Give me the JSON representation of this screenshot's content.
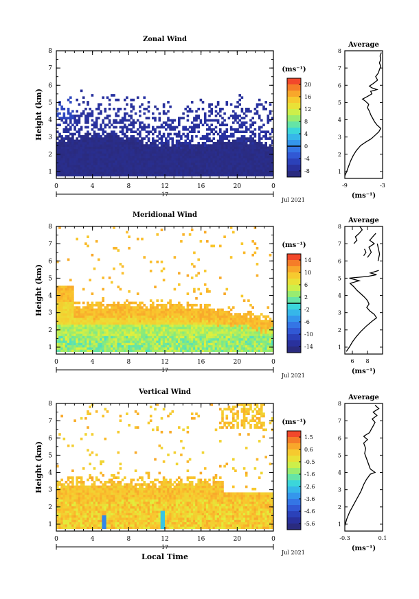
{
  "chart_data": [
    {
      "type": "heatmap",
      "title": "Zonal Wind",
      "xlabel": "",
      "ylabel": "Height (km)",
      "xlim": [
        0,
        24
      ],
      "ylim": [
        0.6,
        8
      ],
      "xticks": [
        "0",
        "4",
        "8",
        "12",
        "16",
        "20",
        "0"
      ],
      "yticks": [
        "1",
        "2",
        "3",
        "4",
        "5",
        "6",
        "7",
        "8"
      ],
      "date_day": "17",
      "date_label": "Jul 2021",
      "colorbar": {
        "unit": "(ms⁻¹)",
        "ticks": [
          "20",
          "16",
          "12",
          "8",
          "4",
          "0",
          "-4",
          "-8"
        ],
        "range": [
          -10,
          22
        ],
        "zero_line": 0
      },
      "avg_profile": {
        "title": "Average",
        "xlim": [
          -9,
          -3
        ],
        "xticks": [
          "-9",
          "-3"
        ],
        "xlabel": "(ms⁻¹)",
        "yticks": [
          "1",
          "2",
          "3",
          "4",
          "5",
          "6",
          "7",
          "8"
        ],
        "segments": [
          [
            [
              -9.0,
              0.75
            ],
            [
              -8.7,
              1.0
            ],
            [
              -8.4,
              1.3
            ],
            [
              -8.1,
              1.6
            ],
            [
              -7.7,
              1.9
            ],
            [
              -7.2,
              2.2
            ],
            [
              -6.5,
              2.5
            ],
            [
              -5.7,
              2.7
            ],
            [
              -4.8,
              2.9
            ],
            [
              -4.2,
              3.1
            ],
            [
              -3.6,
              3.3
            ],
            [
              -3.3,
              3.5
            ],
            [
              -3.9,
              3.7
            ],
            [
              -4.3,
              3.9
            ],
            [
              -4.6,
              4.1
            ],
            [
              -4.9,
              4.3
            ],
            [
              -5.1,
              4.5
            ],
            [
              -5.4,
              4.7
            ],
            [
              -5.2,
              4.9
            ],
            [
              -5.8,
              5.1
            ],
            [
              -6.2,
              5.2
            ],
            [
              -5.4,
              5.35
            ],
            [
              -4.7,
              5.5
            ],
            [
              -4.9,
              5.65
            ],
            [
              -3.9,
              5.75
            ],
            [
              -4.7,
              5.85
            ],
            [
              -5.1,
              5.95
            ],
            [
              -4.5,
              6.1
            ],
            [
              -3.8,
              6.3
            ],
            [
              -4.1,
              6.5
            ],
            [
              -3.7,
              6.7
            ],
            [
              -3.5,
              6.9
            ],
            [
              -3.3,
              7.1
            ],
            [
              -3.5,
              7.3
            ],
            [
              -3.3,
              7.5
            ],
            [
              -3.4,
              7.7
            ],
            [
              -3.2,
              7.9
            ]
          ]
        ]
      }
    },
    {
      "type": "heatmap",
      "title": "Meridional Wind",
      "xlabel": "",
      "ylabel": "Height (km)",
      "xlim": [
        0,
        24
      ],
      "ylim": [
        0.6,
        8
      ],
      "xticks": [
        "0",
        "4",
        "8",
        "12",
        "16",
        "20",
        "0"
      ],
      "yticks": [
        "1",
        "2",
        "3",
        "4",
        "5",
        "6",
        "7",
        "8"
      ],
      "date_day": "17",
      "date_label": "Jul 2021",
      "colorbar": {
        "unit": "(ms⁻¹)",
        "ticks": [
          "14",
          "10",
          "6",
          "2",
          "-2",
          "-6",
          "-10",
          "-14"
        ],
        "range": [
          -16,
          16
        ],
        "zero_line": 0
      },
      "avg_profile": {
        "title": "Average",
        "xlim": [
          5,
          10
        ],
        "xticks": [
          "6",
          "8"
        ],
        "xlabel": "(ms⁻¹)",
        "yticks": [
          "1",
          "2",
          "3",
          "4",
          "5",
          "6",
          "7",
          "8"
        ],
        "segments": [
          [
            [
              5.2,
              0.75
            ],
            [
              5.6,
              1.0
            ],
            [
              6.0,
              1.3
            ],
            [
              6.5,
              1.6
            ],
            [
              7.1,
              1.9
            ],
            [
              7.8,
              2.2
            ],
            [
              8.6,
              2.5
            ],
            [
              9.2,
              2.7
            ],
            [
              8.9,
              2.9
            ],
            [
              8.3,
              3.1
            ],
            [
              7.9,
              3.3
            ],
            [
              8.2,
              3.5
            ],
            [
              8.0,
              3.7
            ],
            [
              7.6,
              3.9
            ],
            [
              7.1,
              4.1
            ],
            [
              6.6,
              4.3
            ],
            [
              6.2,
              4.5
            ],
            [
              5.7,
              4.7
            ],
            [
              6.9,
              4.85
            ],
            [
              5.6,
              5.0
            ],
            [
              8.0,
              5.1
            ],
            [
              9.2,
              5.2
            ],
            [
              8.4,
              5.3
            ],
            [
              9.5,
              5.45
            ]
          ],
          [
            [
              7.5,
              6.3
            ],
            [
              7.8,
              6.5
            ],
            [
              7.6,
              6.7
            ]
          ],
          [
            [
              8.0,
              6.2
            ],
            [
              8.5,
              6.5
            ],
            [
              8.2,
              6.8
            ],
            [
              8.9,
              7.0
            ],
            [
              8.3,
              7.2
            ],
            [
              8.7,
              7.4
            ],
            [
              9.1,
              7.6
            ]
          ],
          [
            [
              6.2,
              7.0
            ],
            [
              6.6,
              7.2
            ],
            [
              6.4,
              7.4
            ],
            [
              6.9,
              7.6
            ],
            [
              7.3,
              7.8
            ],
            [
              7.0,
              8.0
            ]
          ],
          [
            [
              9.4,
              6.0
            ],
            [
              9.6,
              6.4
            ],
            [
              9.3,
              7.0
            ]
          ]
        ]
      }
    },
    {
      "type": "heatmap",
      "title": "Vertical Wind",
      "xlabel": "Local Time",
      "ylabel": "Height (km)",
      "xlim": [
        0,
        24
      ],
      "ylim": [
        0.6,
        8
      ],
      "xticks": [
        "0",
        "4",
        "8",
        "12",
        "16",
        "20",
        "0"
      ],
      "yticks": [
        "1",
        "2",
        "3",
        "4",
        "5",
        "6",
        "7",
        "8"
      ],
      "date_day": "17",
      "date_label": "Jul 2021",
      "colorbar": {
        "unit": "(ms⁻¹)",
        "ticks": [
          "1.5",
          "0.6",
          "-0.5",
          "-1.6",
          "-2.6",
          "-3.6",
          "-4.6",
          "-5.6"
        ],
        "range": [
          -6.2,
          2.1
        ],
        "zero_line": null
      },
      "avg_profile": {
        "title": "Average",
        "xlim": [
          -0.3,
          0.1
        ],
        "xticks": [
          "-0.3",
          "0.1"
        ],
        "xlabel": "(ms⁻¹)",
        "yticks": [
          "1",
          "2",
          "3",
          "4",
          "5",
          "6",
          "7",
          "8"
        ],
        "segments": [
          [
            [
              -0.3,
              0.9
            ],
            [
              -0.28,
              1.3
            ],
            [
              -0.25,
              1.7
            ],
            [
              -0.21,
              2.1
            ],
            [
              -0.17,
              2.5
            ],
            [
              -0.13,
              2.9
            ],
            [
              -0.1,
              3.3
            ],
            [
              -0.07,
              3.6
            ],
            [
              -0.03,
              3.9
            ],
            [
              0.02,
              4.0
            ],
            [
              -0.03,
              4.2
            ],
            [
              -0.05,
              4.5
            ],
            [
              -0.07,
              4.8
            ],
            [
              -0.09,
              5.1
            ],
            [
              -0.08,
              5.4
            ],
            [
              -0.1,
              5.7
            ],
            [
              -0.06,
              5.9
            ],
            [
              -0.1,
              6.1
            ],
            [
              -0.04,
              6.3
            ],
            [
              -0.02,
              6.5
            ],
            [
              0.0,
              6.7
            ],
            [
              0.02,
              6.9
            ],
            [
              -0.01,
              7.1
            ],
            [
              0.04,
              7.3
            ],
            [
              0.0,
              7.5
            ],
            [
              0.06,
              7.7
            ],
            [
              0.02,
              7.9
            ]
          ]
        ]
      }
    }
  ]
}
